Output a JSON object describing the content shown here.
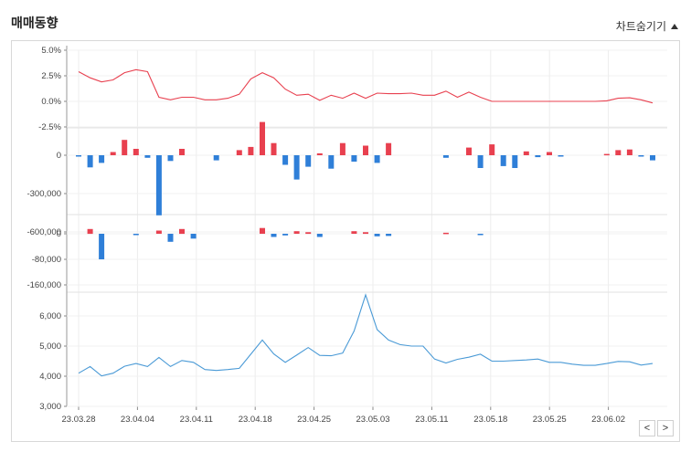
{
  "header": {
    "title": "매매동향",
    "toggle_label": "차트숨기기"
  },
  "nav": {
    "prev": "<",
    "next": ">"
  },
  "chart_data": {
    "type": "line",
    "x_labels": [
      "23.03.28",
      "23.04.04",
      "23.04.11",
      "23.04.18",
      "23.04.25",
      "23.05.03",
      "23.05.11",
      "23.05.18",
      "23.05.25",
      "23.06.02"
    ],
    "panels": [
      {
        "name": "rate",
        "type": "line",
        "color": "#e8404f",
        "ylim": [
          -5.0,
          5.0
        ],
        "ticks": [
          {
            "v": 5.0,
            "label": "5.0%"
          },
          {
            "v": 2.5,
            "label": "2.5%"
          },
          {
            "v": 0.0,
            "label": "0.0%"
          },
          {
            "v": -2.5,
            "label": "-2.5%"
          }
        ],
        "values": [
          2.9,
          2.3,
          1.9,
          2.1,
          2.8,
          3.1,
          2.9,
          0.4,
          0.15,
          0.4,
          0.4,
          0.15,
          0.15,
          0.3,
          0.7,
          2.2,
          2.8,
          2.3,
          1.2,
          0.6,
          0.7,
          0.1,
          0.6,
          0.3,
          0.8,
          0.3,
          0.8,
          0.75,
          0.75,
          0.8,
          0.6,
          0.6,
          1.0,
          0.4,
          0.9,
          0.4,
          0.0,
          0.0,
          0.0,
          0.0,
          0.0,
          0.0,
          0.0,
          0.0,
          0.0,
          0.0,
          0.05,
          0.3,
          0.35,
          0.15,
          -0.15
        ]
      },
      {
        "name": "bar1",
        "type": "bar",
        "up_color": "#e8404f",
        "down_color": "#2f7fd8",
        "ylim": [
          -900000,
          300000
        ],
        "ticks": [
          {
            "v": 0,
            "label": "0"
          },
          {
            "v": -300000,
            "label": "-300,000"
          },
          {
            "v": -600000,
            "label": "-600,000"
          }
        ],
        "values": [
          -10000,
          -95000,
          -60000,
          25000,
          120000,
          50000,
          -20000,
          -470000,
          -45000,
          50000,
          0,
          0,
          -40000,
          0,
          40000,
          65000,
          260000,
          95000,
          -75000,
          -190000,
          -90000,
          15000,
          -105000,
          95000,
          -50000,
          75000,
          -60000,
          95000,
          0,
          0,
          0,
          0,
          -20000,
          0,
          60000,
          -100000,
          85000,
          -85000,
          -100000,
          30000,
          -15000,
          25000,
          -10000,
          0,
          0,
          0,
          10000,
          40000,
          45000,
          -5000,
          -40000
        ]
      },
      {
        "name": "bar2",
        "type": "bar",
        "up_color": "#e8404f",
        "down_color": "#2f7fd8",
        "ylim": [
          -200000,
          60000
        ],
        "ticks": [
          {
            "v": 0,
            "label": "0"
          },
          {
            "v": -80000,
            "label": "-80,000"
          },
          {
            "v": -160000,
            "label": "-160,000"
          }
        ],
        "values": [
          0,
          15000,
          -80000,
          0,
          0,
          -3000,
          0,
          10000,
          -25000,
          15000,
          -15000,
          0,
          0,
          0,
          0,
          0,
          18000,
          -10000,
          -5000,
          8000,
          5000,
          -10000,
          0,
          0,
          8000,
          5000,
          -8000,
          -7000,
          0,
          0,
          0,
          0,
          3000,
          0,
          0,
          -3000,
          0,
          0,
          0,
          0,
          0,
          0,
          0,
          0,
          0,
          0,
          0,
          0,
          0,
          0,
          0
        ]
      },
      {
        "name": "price",
        "type": "line",
        "color": "#4a9ad6",
        "ylim": [
          3000,
          7000
        ],
        "ticks": [
          {
            "v": 6000,
            "label": "6,000"
          },
          {
            "v": 5000,
            "label": "5,000"
          },
          {
            "v": 4000,
            "label": "4,000"
          },
          {
            "v": 3000,
            "label": "3,000"
          }
        ],
        "values": [
          4100,
          4320,
          4010,
          4100,
          4330,
          4420,
          4320,
          4620,
          4320,
          4520,
          4460,
          4220,
          4190,
          4220,
          4260,
          4730,
          5200,
          4740,
          4460,
          4700,
          4950,
          4690,
          4680,
          4770,
          5500,
          6700,
          5550,
          5200,
          5050,
          5000,
          5000,
          4570,
          4440,
          4560,
          4630,
          4730,
          4500,
          4500,
          4520,
          4540,
          4570,
          4460,
          4460,
          4400,
          4360,
          4360,
          4420,
          4490,
          4480,
          4370,
          4420
        ]
      }
    ]
  }
}
